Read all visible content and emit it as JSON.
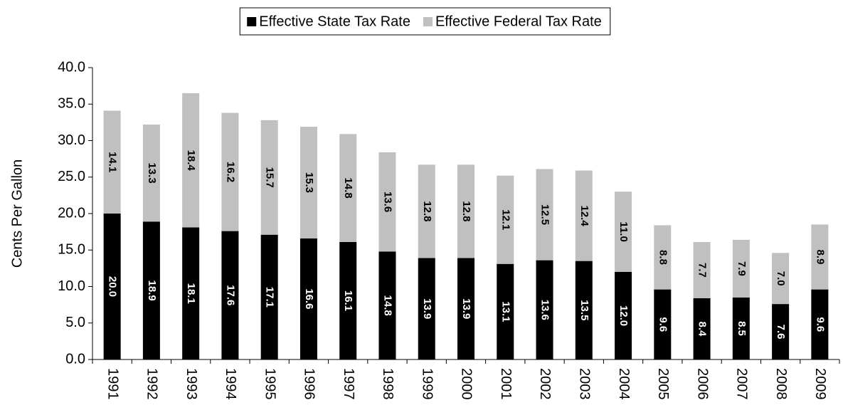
{
  "chart_data": {
    "type": "stacked-bar",
    "y_label": "Cents Per Gallon",
    "categories": [
      "1991",
      "1992",
      "1993",
      "1994",
      "1995",
      "1996",
      "1997",
      "1998",
      "1999",
      "2000",
      "2001",
      "2002",
      "2003",
      "2004",
      "2005",
      "2006",
      "2007",
      "2008",
      "2009"
    ],
    "series": [
      {
        "name": "Effective State Tax Rate",
        "color": "#000000",
        "values": [
          20.0,
          18.9,
          18.1,
          17.6,
          17.1,
          16.6,
          16.1,
          14.8,
          13.9,
          13.9,
          13.1,
          13.6,
          13.5,
          12.0,
          9.6,
          8.4,
          8.5,
          7.6,
          9.6
        ],
        "value_labels": [
          "20.0",
          "18.9",
          "18.1",
          "17.6",
          "17.1",
          "16.6",
          "16.1",
          "14.8",
          "13.9",
          "13.9",
          "13.1",
          "13.6",
          "13.5",
          "12.0",
          "9.6",
          "8.4",
          "8.5",
          "7.6",
          "9.6"
        ]
      },
      {
        "name": "Effective Federal Tax Rate",
        "color": "#c0c0c0",
        "values": [
          14.1,
          13.3,
          18.4,
          16.2,
          15.7,
          15.3,
          14.8,
          13.6,
          12.8,
          12.8,
          12.1,
          12.5,
          12.4,
          11.0,
          8.8,
          7.7,
          7.9,
          7.0,
          8.9
        ],
        "value_labels": [
          "14.1",
          "13.3",
          "18.4",
          "16.2",
          "15.7",
          "15.3",
          "14.8",
          "13.6",
          "12.8",
          "12.8",
          "12.1",
          "12.5",
          "12.4",
          "11.0",
          "8.8",
          "7.7",
          "7.9",
          "7.0",
          "8.9"
        ]
      }
    ],
    "ylim": [
      0,
      40
    ],
    "yticks": [
      {
        "value": 0,
        "label": "0.0"
      },
      {
        "value": 5,
        "label": "5.0"
      },
      {
        "value": 10,
        "label": "10.0"
      },
      {
        "value": 15,
        "label": "15.0"
      },
      {
        "value": 20,
        "label": "20.0"
      },
      {
        "value": 25,
        "label": "25.0"
      },
      {
        "value": 30,
        "label": "30.0"
      },
      {
        "value": 35,
        "label": "35.0"
      },
      {
        "value": 40,
        "label": "40.0"
      }
    ],
    "legend": "top"
  }
}
